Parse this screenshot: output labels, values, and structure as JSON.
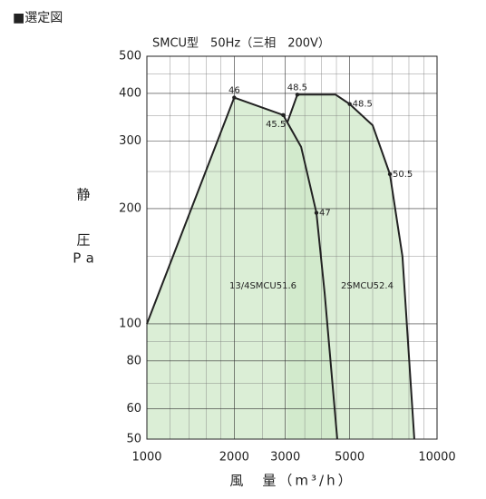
{
  "chart_data": {
    "type": "line",
    "page_title": "■選定図",
    "title": "SMCU型　50Hz（三相　200V）",
    "x_label": "風　量（m³/h）",
    "y_label": [
      "静",
      "圧",
      "Pa"
    ],
    "xlog": true,
    "ylog": true,
    "xlim": [
      1000,
      10000
    ],
    "xticks": [
      1000,
      2000,
      3000,
      5000,
      10000
    ],
    "ylim": [
      50,
      500
    ],
    "yticks": [
      50,
      60,
      80,
      100,
      200,
      300,
      400,
      500
    ],
    "x_minor_grid": [
      1200,
      1400,
      1600,
      1800,
      2500,
      3500,
      4000,
      4500,
      6000,
      7000,
      8000,
      9000
    ],
    "y_minor_grid": [
      70,
      90,
      150,
      250,
      350,
      450
    ],
    "grid": true,
    "fill": "#cfe8c8",
    "series": [
      {
        "name": "13/4SMCU51.6",
        "color": "#222222",
        "x": [
          1000,
          2000,
          2950,
          3400,
          3840,
          4100,
          4530
        ],
        "values": [
          100,
          390,
          351,
          290,
          195,
          120,
          50
        ]
      },
      {
        "name": "2SMCU52.4",
        "color": "#222222",
        "x": [
          3050,
          3300,
          4470,
          5000,
          6000,
          6880,
          7600,
          8350
        ],
        "values": [
          336,
          397,
          397,
          375,
          330,
          246,
          150,
          50
        ]
      }
    ],
    "annotations": [
      {
        "text": "46",
        "series": 0,
        "point": 1
      },
      {
        "text": "45.5",
        "series": 0,
        "point": 2
      },
      {
        "text": "47",
        "series": 0,
        "point": 4
      },
      {
        "text": "48.5",
        "series": 1,
        "point": 1
      },
      {
        "text": "48.5",
        "series": 1,
        "point": 3
      },
      {
        "text": "50.5",
        "series": 1,
        "point": 5
      }
    ]
  }
}
